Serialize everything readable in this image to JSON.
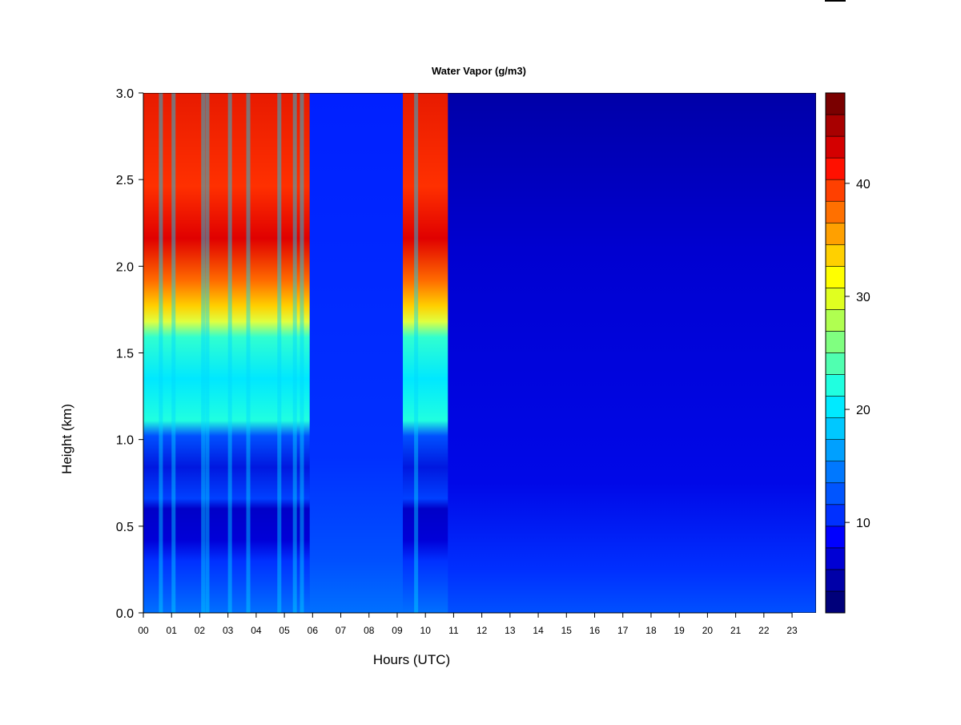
{
  "chart_data": {
    "type": "heatmap",
    "title": "Water Vapor (g/m3)",
    "xlabel": "Hours (UTC)",
    "ylabel": "Height (km)",
    "xlim": [
      0,
      23.85
    ],
    "ylim": [
      0.0,
      3.0
    ],
    "x_ticks": [
      0,
      1,
      2,
      3,
      4,
      5,
      6,
      7,
      8,
      9,
      10,
      11,
      12,
      13,
      14,
      15,
      16,
      17,
      18,
      19,
      20,
      21,
      22,
      23
    ],
    "x_tick_labels": [
      "00",
      "01",
      "02",
      "03",
      "04",
      "05",
      "06",
      "07",
      "08",
      "09",
      "10",
      "11",
      "12",
      "13",
      "14",
      "15",
      "16",
      "17",
      "18",
      "19",
      "20",
      "21",
      "22",
      "23"
    ],
    "y_ticks": [
      0.0,
      0.5,
      1.0,
      1.5,
      2.0,
      2.5,
      3.0
    ],
    "y_tick_labels": [
      "0.0",
      "0.5",
      "1.0",
      "1.5",
      "2.0",
      "2.5",
      "3.0"
    ],
    "colorbar": {
      "levels_min": 2,
      "levels_max": 48,
      "ticks": [
        10,
        20,
        30,
        40
      ],
      "tick_labels": [
        "10",
        "20",
        "30",
        "40"
      ],
      "colors": [
        "#00007a",
        "#0000a8",
        "#0000d4",
        "#0000ff",
        "#0030ff",
        "#0055ff",
        "#0078ff",
        "#00a0ff",
        "#00c8ff",
        "#00eaff",
        "#20ffe0",
        "#50ffb0",
        "#80ff80",
        "#b0ff50",
        "#e0ff20",
        "#ffff00",
        "#ffd000",
        "#ffa000",
        "#ff7000",
        "#ff4000",
        "#ff1000",
        "#d40000",
        "#a80000",
        "#7a0000"
      ]
    },
    "grid": false,
    "bands": [
      {
        "x_start": 0.0,
        "x_end": 5.9,
        "description": "high water vapor above ~1.7 km (about 35-45 g/m3), about 15-22 g/m3 at 1.1-1.7 km, low (about 5-8 g/m3) at 0.3-1.05 km"
      },
      {
        "x_start": 5.9,
        "x_end": 9.2,
        "value_approx": 10
      },
      {
        "x_start": 9.2,
        "x_end": 10.8,
        "description": "high water vapor above ~1.7 km (about 35-42 g/m3), low values near 0.5 km"
      },
      {
        "x_start": 10.8,
        "x_end": 23.85,
        "value_approx": 8
      }
    ]
  }
}
